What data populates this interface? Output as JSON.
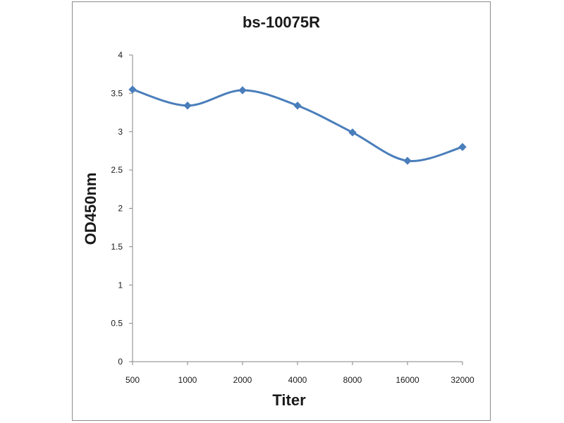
{
  "chart_data": {
    "type": "line",
    "title": "bs-10075R",
    "xlabel": "Titer",
    "ylabel": "OD450nm",
    "categories": [
      "500",
      "1000",
      "2000",
      "4000",
      "8000",
      "16000",
      "32000"
    ],
    "series": [
      {
        "values": [
          3.55,
          3.34,
          3.54,
          3.34,
          2.99,
          2.62,
          2.8
        ],
        "color": "#4a7ebb",
        "marker": "diamond",
        "smooth": true
      }
    ],
    "ylim": [
      0,
      4
    ],
    "yticks": [
      "0",
      "0.5",
      "1",
      "1.5",
      "2",
      "2.5",
      "3",
      "3.5",
      "4"
    ],
    "grid": false,
    "legend": "none"
  }
}
